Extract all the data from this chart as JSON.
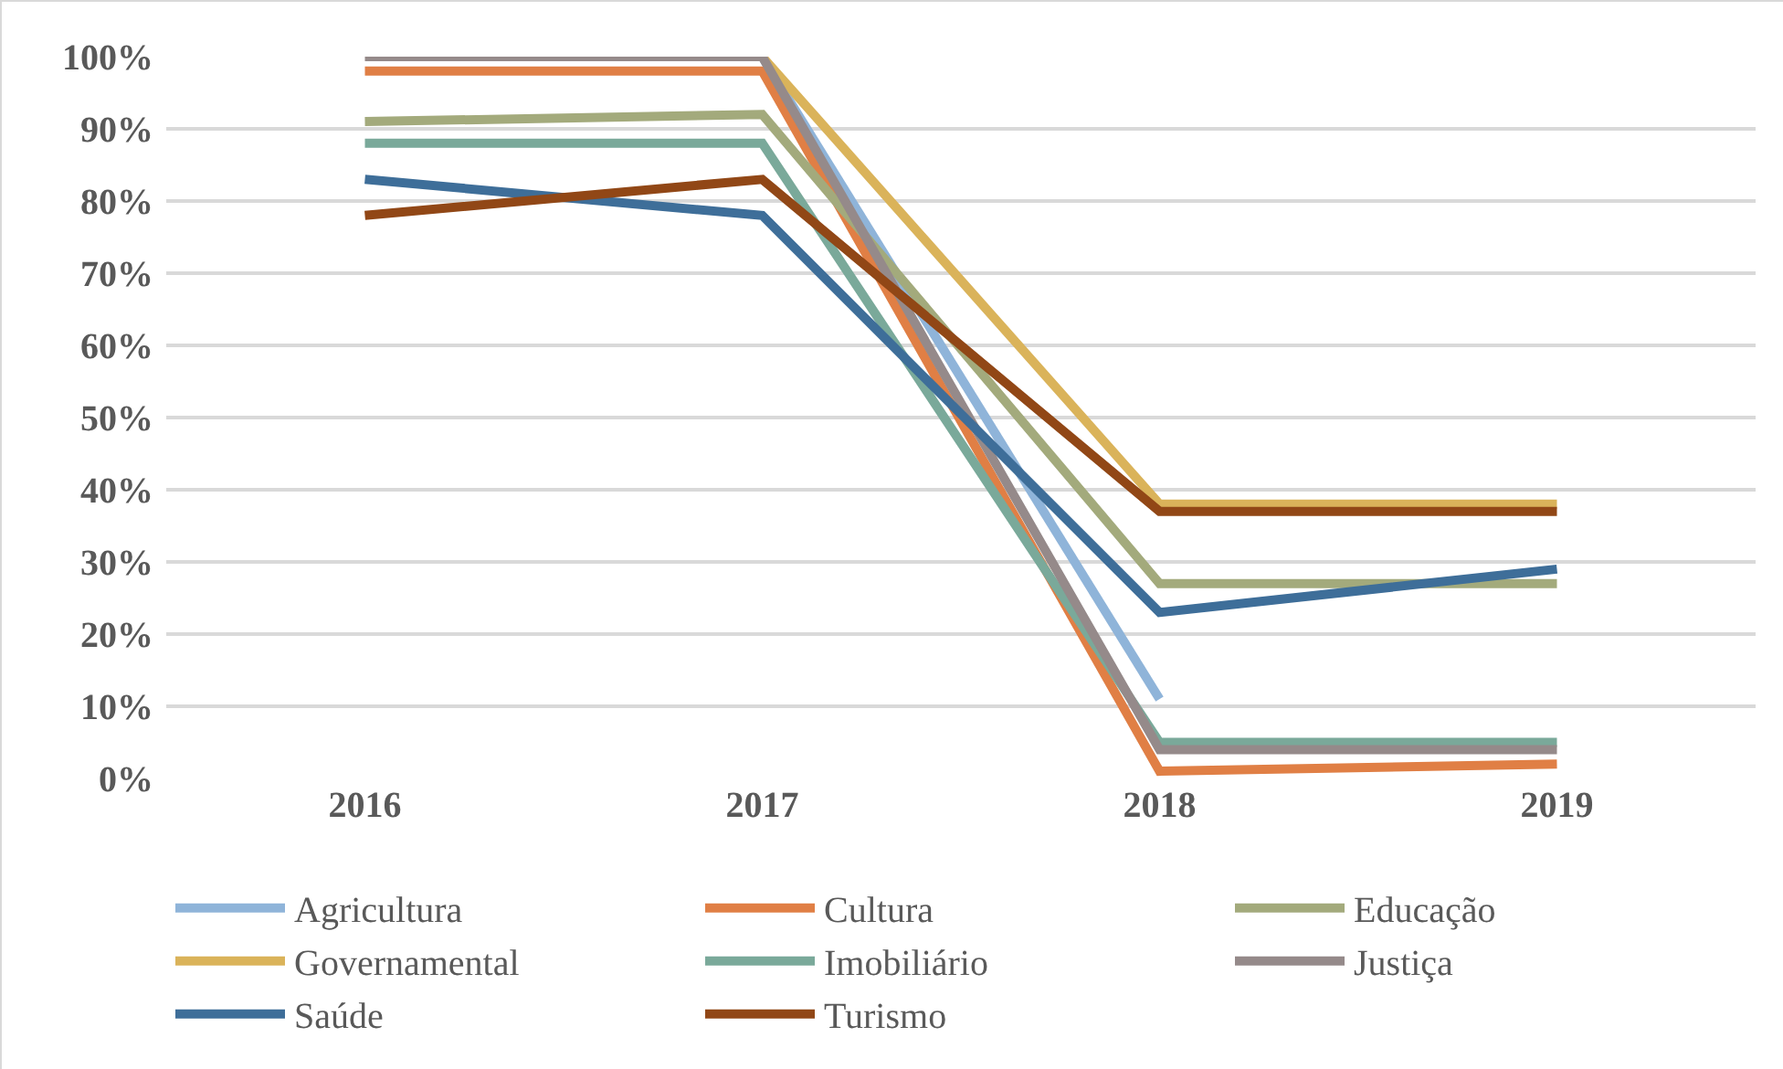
{
  "chart_data": {
    "type": "line",
    "categories": [
      "2016",
      "2017",
      "2018",
      "2019"
    ],
    "ylim": [
      0,
      100
    ],
    "yticks": [
      {
        "value": 0,
        "label": "0%"
      },
      {
        "value": 10,
        "label": "10%"
      },
      {
        "value": 20,
        "label": "20%"
      },
      {
        "value": 30,
        "label": "30%"
      },
      {
        "value": 40,
        "label": "40%"
      },
      {
        "value": 50,
        "label": "50%"
      },
      {
        "value": 60,
        "label": "60%"
      },
      {
        "value": 70,
        "label": "70%"
      },
      {
        "value": 80,
        "label": "80%"
      },
      {
        "value": 90,
        "label": "90%"
      },
      {
        "value": 100,
        "label": "100%"
      }
    ],
    "grid": "y",
    "legend": "bottom",
    "marker": "none",
    "line_style": "solid",
    "series": [
      {
        "name": "Agricultura",
        "color": "#8fb4d9",
        "values": [
          null,
          100,
          11,
          null
        ]
      },
      {
        "name": "Cultura",
        "color": "#e07f45",
        "values": [
          98,
          98,
          1,
          2
        ]
      },
      {
        "name": "Educação",
        "color": "#a3aa7c",
        "values": [
          91,
          92,
          27,
          27
        ]
      },
      {
        "name": "Governamental",
        "color": "#dab35a",
        "values": [
          null,
          100,
          38,
          38
        ]
      },
      {
        "name": "Imobiliário",
        "color": "#7aa99a",
        "values": [
          88,
          88,
          5,
          5
        ]
      },
      {
        "name": "Justiça",
        "color": "#958a8a",
        "values": [
          100,
          100,
          4,
          4
        ]
      },
      {
        "name": "Saúde",
        "color": "#3e6e99",
        "values": [
          83,
          78,
          23,
          29
        ]
      },
      {
        "name": "Turismo",
        "color": "#914716",
        "values": [
          78,
          83,
          37,
          37
        ]
      }
    ]
  }
}
